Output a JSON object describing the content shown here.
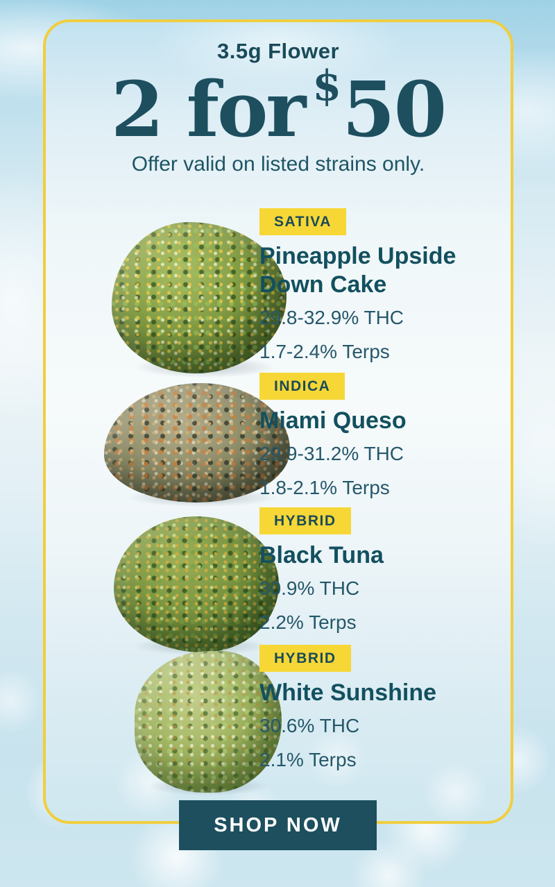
{
  "header": {
    "eyebrow": "3.5g Flower",
    "deal_prefix": "2 for",
    "deal_currency": "$",
    "deal_amount": "50",
    "subtitle": "Offer valid on listed strains only."
  },
  "products": [
    {
      "type": "SATIVA",
      "name": "Pineapple Upside Down Cake",
      "thc": "29.8-32.9% THC",
      "terps": "1.7-2.4% Terps",
      "photo": "green-cannabis-bud-with-orange-pistils"
    },
    {
      "type": "INDICA",
      "name": "Miami Queso",
      "thc": "29.9-31.2% THC",
      "terps": "1.8-2.1% Terps",
      "photo": "dark-olive-cannabis-bud-with-tan-patches"
    },
    {
      "type": "HYBRID",
      "name": "Black Tuna",
      "thc": "30.9% THC",
      "terps": "2.2% Terps",
      "photo": "shaggy-green-cannabis-bud-with-amber-hairs"
    },
    {
      "type": "HYBRID",
      "name": "White Sunshine",
      "thc": "30.6% THC",
      "terps": "2.1% Terps",
      "photo": "frosty-light-green-cannabis-bud"
    }
  ],
  "cta": {
    "label": "SHOP NOW"
  },
  "colors": {
    "badge_yellow": "#F6D736",
    "card_border_yellow": "#F0CE3E",
    "headline_teal": "#1D4F5F",
    "body_teal": "#25586A",
    "button_bg": "#1D4F5E",
    "button_text": "#FFFFFF",
    "background_sky": "#BFE0EE"
  }
}
